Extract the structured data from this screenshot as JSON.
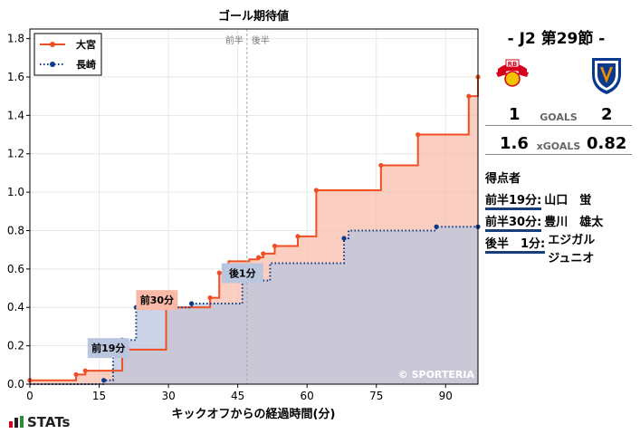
{
  "chart_data": {
    "type": "line",
    "title": "ゴール期待値",
    "xlabel": "キックオフからの経過時間(分)",
    "ylabel": "",
    "xlim": [
      0,
      97
    ],
    "ylim": [
      0,
      1.85
    ],
    "xticks": [
      0,
      15,
      30,
      45,
      60,
      75,
      90
    ],
    "yticks": [
      0.0,
      0.2,
      0.4,
      0.6,
      0.8,
      1.0,
      1.2,
      1.4,
      1.6,
      1.8
    ],
    "grid": true,
    "legend_position": "top-left",
    "halftime_labels": {
      "first": "前半",
      "second": "後半",
      "x": 47
    },
    "watermark": "© SPORTERIA",
    "series": [
      {
        "name": "大宮",
        "color": "#f04e23",
        "fill": "#f8b9a6",
        "style": "solid",
        "step_x": [
          0,
          10,
          12,
          20,
          29.5,
          39,
          41,
          43,
          47.5,
          49.5,
          50.5,
          53,
          58,
          62,
          76,
          84,
          95,
          97
        ],
        "step_y": [
          0.02,
          0.05,
          0.07,
          0.18,
          0.4,
          0.45,
          0.58,
          0.64,
          0.65,
          0.66,
          0.68,
          0.72,
          0.77,
          1.01,
          1.14,
          1.3,
          1.5,
          1.6
        ],
        "points_x": [
          0,
          10,
          12,
          20,
          29.5,
          39,
          41,
          49.5,
          50.5,
          53,
          58,
          62,
          76,
          84,
          95,
          97
        ],
        "points_y": [
          0.02,
          0.05,
          0.07,
          0.18,
          0.4,
          0.45,
          0.58,
          0.66,
          0.68,
          0.72,
          0.77,
          1.01,
          1.14,
          1.3,
          1.5,
          1.6
        ]
      },
      {
        "name": "長崎",
        "color": "#0a3a8c",
        "fill": "#b9c6dd",
        "style": "dotted",
        "step_x": [
          0,
          16,
          18,
          20,
          23,
          35,
          46,
          47,
          52,
          68,
          69,
          88,
          97
        ],
        "step_y": [
          0.0,
          0.02,
          0.16,
          0.23,
          0.4,
          0.42,
          0.54,
          0.54,
          0.63,
          0.76,
          0.8,
          0.82,
          0.82
        ],
        "points_x": [
          16,
          18,
          20,
          23,
          35,
          47,
          68,
          88,
          97
        ],
        "points_y": [
          0.02,
          0.16,
          0.23,
          0.4,
          0.42,
          0.54,
          0.76,
          0.82,
          0.82
        ]
      }
    ],
    "annotations": [
      {
        "label": "前19分",
        "team": "長崎",
        "x": 18,
        "y": 0.16,
        "box_x": 12.5,
        "box_y": 0.24,
        "fill": "#b9c6dd"
      },
      {
        "label": "前30分",
        "team": "大宮",
        "x": 29.5,
        "y": 0.4,
        "box_x": 23,
        "box_y": 0.49,
        "fill": "#f8b9a6"
      },
      {
        "label": "後1分",
        "team": "長崎",
        "x": 47,
        "y": 0.54,
        "box_x": 41.5,
        "box_y": 0.63,
        "fill": "#b9c6dd"
      }
    ]
  },
  "match": {
    "title": "- J2 第29節 -",
    "home": {
      "name": "大宮",
      "goals": "1",
      "xg": "1.6",
      "crest_icon": "rb-omiya-crest-icon",
      "crest_color": "#d6001c"
    },
    "away": {
      "name": "長崎",
      "goals": "2",
      "xg": "0.82",
      "crest_icon": "vvaren-nagasaki-crest-icon",
      "crest_color": "#0a3a8c"
    },
    "goals_label": "GOALS",
    "xg_label": "xGOALS",
    "scorers_title": "得点者",
    "scorers": [
      {
        "time": "前半19分:",
        "name": "山口　蛍"
      },
      {
        "time": "前半30分:",
        "name": "豊川　雄太"
      },
      {
        "time": "後半　1分:",
        "name": "エジガル\nジュニオ"
      }
    ]
  },
  "brand": {
    "text": "STATs",
    "icon": "stats-bars-icon"
  }
}
